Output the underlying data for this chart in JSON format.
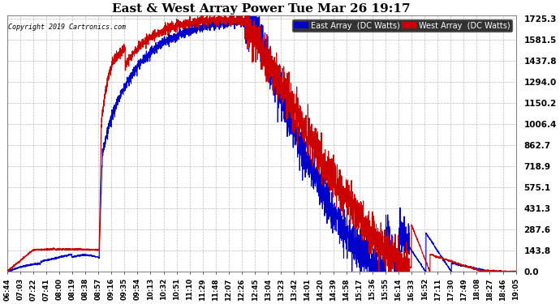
{
  "title": "East & West Array Power Tue Mar 26 19:17",
  "copyright": "Copyright 2019 Cartronics.com",
  "legend_east": "East Array  (DC Watts)",
  "legend_west": "West Array  (DC Watts)",
  "east_color": "#0000cc",
  "west_color": "#cc0000",
  "background_color": "#ffffff",
  "plot_bg_color": "#ffffff",
  "grid_color": "#aaaaaa",
  "yticks": [
    0.0,
    143.8,
    287.6,
    431.3,
    575.1,
    718.9,
    862.7,
    1006.4,
    1150.2,
    1294.0,
    1437.8,
    1581.5,
    1725.3
  ],
  "ymax": 1725.3,
  "ymin": 0.0,
  "xtick_labels": [
    "06:44",
    "07:03",
    "07:22",
    "07:41",
    "08:00",
    "08:19",
    "08:38",
    "08:57",
    "09:16",
    "09:35",
    "09:54",
    "10:13",
    "10:32",
    "10:51",
    "11:10",
    "11:29",
    "11:48",
    "12:07",
    "12:26",
    "12:45",
    "13:04",
    "13:23",
    "13:42",
    "14:01",
    "14:20",
    "14:39",
    "14:58",
    "15:17",
    "15:36",
    "15:55",
    "16:14",
    "16:33",
    "16:52",
    "17:11",
    "17:30",
    "17:49",
    "18:08",
    "18:27",
    "18:46",
    "19:05"
  ]
}
